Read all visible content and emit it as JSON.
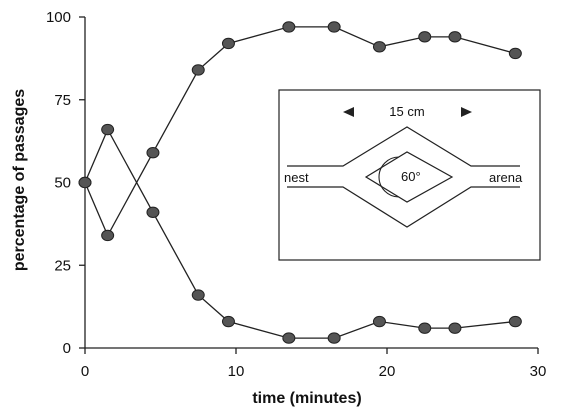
{
  "chart_data": {
    "type": "line",
    "xlabel": "time (minutes)",
    "ylabel": "percentage of passages",
    "xlim": [
      0,
      30
    ],
    "ylim": [
      0,
      100
    ],
    "x_ticks": [
      "0",
      "10",
      "20",
      "30"
    ],
    "y_ticks": [
      "0",
      "25",
      "50",
      "75",
      "100"
    ],
    "grid": false,
    "series": [
      {
        "x": [
          0,
          1.5,
          4.5,
          7.5,
          9.5,
          13.5,
          16.5,
          19.5,
          22.5,
          24.5,
          28.5
        ],
        "y": [
          50,
          34,
          59,
          84,
          92,
          97,
          97,
          91,
          94,
          94,
          89
        ],
        "color": "#555555"
      },
      {
        "x": [
          0,
          1.5,
          4.5,
          7.5,
          9.5,
          13.5,
          16.5,
          19.5,
          22.5,
          24.5,
          28.5
        ],
        "y": [
          50,
          66,
          41,
          16,
          8,
          3,
          3,
          8,
          6,
          6,
          8
        ],
        "color": "#555555"
      }
    ]
  },
  "inset": {
    "scale_label": "15  cm",
    "left_label": "nest",
    "right_label": "arena",
    "angle_label": "60°"
  }
}
